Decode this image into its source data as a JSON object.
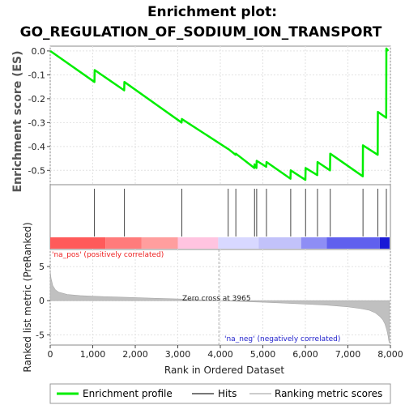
{
  "chart_data": {
    "type": "line",
    "title_line1": "Enrichment plot:",
    "title_line2": "GO_REGULATION_OF_SODIUM_ION_TRANSPORT",
    "ylabel_top": "Enrichment score (ES)",
    "ylabel_bottom": "Ranked list metric (PreRanked)",
    "xlabel": "Rank in Ordered Dataset",
    "xlim": [
      0,
      8000
    ],
    "xticks": [
      0,
      1000,
      2000,
      3000,
      4000,
      5000,
      6000,
      7000,
      8000
    ],
    "xtick_labels": [
      "0",
      "1,000",
      "2,000",
      "3,000",
      "4,000",
      "5,000",
      "6,000",
      "7,000",
      "8,000"
    ],
    "es_ylim": [
      -0.56,
      0.02
    ],
    "es_yticks": [
      0.0,
      -0.1,
      -0.2,
      -0.3,
      -0.4,
      -0.5
    ],
    "es_ytick_labels": [
      "0.0",
      "-0.1",
      "-0.2",
      "-0.3",
      "-0.4",
      "-0.5"
    ],
    "metric_ylim": [
      -6.5,
      7.5
    ],
    "metric_yticks": [
      5,
      0,
      -5
    ],
    "metric_ytick_labels": [
      "5",
      "0",
      "-5"
    ],
    "grid": true,
    "series": [
      {
        "name": "Enrichment profile",
        "color": "#00ee00",
        "x": [
          0,
          1040,
          1045,
          1740,
          1745,
          3090,
          3095,
          4180,
          4185,
          4360,
          4365,
          4800,
          4805,
          4850,
          4855,
          5080,
          5085,
          5650,
          5655,
          6000,
          6005,
          6280,
          6285,
          6580,
          6585,
          7350,
          7355,
          7700,
          7705,
          7900,
          7905,
          7950
        ],
        "y": [
          0.0,
          -0.13,
          -0.08,
          -0.165,
          -0.13,
          -0.3,
          -0.285,
          -0.41,
          -0.41,
          -0.435,
          -0.43,
          -0.49,
          -0.475,
          -0.49,
          -0.46,
          -0.485,
          -0.465,
          -0.535,
          -0.5,
          -0.54,
          -0.49,
          -0.52,
          -0.465,
          -0.5,
          -0.43,
          -0.525,
          -0.395,
          -0.435,
          -0.255,
          -0.28,
          0.01,
          0.0
        ]
      }
    ],
    "hits": [
      1040,
      1745,
      3095,
      4185,
      4365,
      4805,
      4855,
      5085,
      5655,
      6005,
      6285,
      6585,
      7355,
      7705,
      7905
    ],
    "ranking_metric": {
      "name": "Ranking metric scores",
      "x": [
        0,
        20,
        60,
        120,
        200,
        400,
        700,
        1000,
        1500,
        2000,
        2500,
        3000,
        3500,
        3965,
        4500,
        5000,
        5500,
        6000,
        6500,
        7000,
        7300,
        7500,
        7650,
        7750,
        7820,
        7870,
        7910,
        7940,
        7960,
        7975
      ],
      "y": [
        4.3,
        3.3,
        2.2,
        1.6,
        1.25,
        0.9,
        0.75,
        0.65,
        0.55,
        0.45,
        0.35,
        0.25,
        0.12,
        0.0,
        -0.12,
        -0.22,
        -0.35,
        -0.5,
        -0.65,
        -0.9,
        -1.15,
        -1.4,
        -1.8,
        -2.3,
        -2.8,
        -3.4,
        -4.2,
        -5.0,
        -5.8,
        -6.2
      ]
    },
    "color_bar_segments": [
      {
        "from": 0,
        "to": 1300,
        "color": "#ff5a5a"
      },
      {
        "from": 1300,
        "to": 2150,
        "color": "#ff7b7b"
      },
      {
        "from": 2150,
        "to": 3000,
        "color": "#ff9e9e"
      },
      {
        "from": 3000,
        "to": 3950,
        "color": "#ffc4e0"
      },
      {
        "from": 3950,
        "to": 4900,
        "color": "#d8d8ff"
      },
      {
        "from": 4900,
        "to": 5900,
        "color": "#c2c2fa"
      },
      {
        "from": 5900,
        "to": 6500,
        "color": "#8e8ef5"
      },
      {
        "from": 6500,
        "to": 7750,
        "color": "#6060ee"
      },
      {
        "from": 7750,
        "to": 7980,
        "color": "#1a1ad6"
      }
    ],
    "annotations": {
      "pos_label": "'na_pos' (positively correlated)",
      "neg_label": "'na_neg' (negatively correlated)",
      "zero_cross": "Zero cross at 3965",
      "zero_cross_x": 3965,
      "pos_color": "#ee2222",
      "neg_color": "#2222cc"
    },
    "legend": {
      "placement": "bottom",
      "items": [
        {
          "label": "Enrichment profile",
          "color": "#00ee00"
        },
        {
          "label": "Hits",
          "color": "#777777"
        },
        {
          "label": "Ranking metric scores",
          "color": "#cccccc"
        }
      ]
    }
  }
}
